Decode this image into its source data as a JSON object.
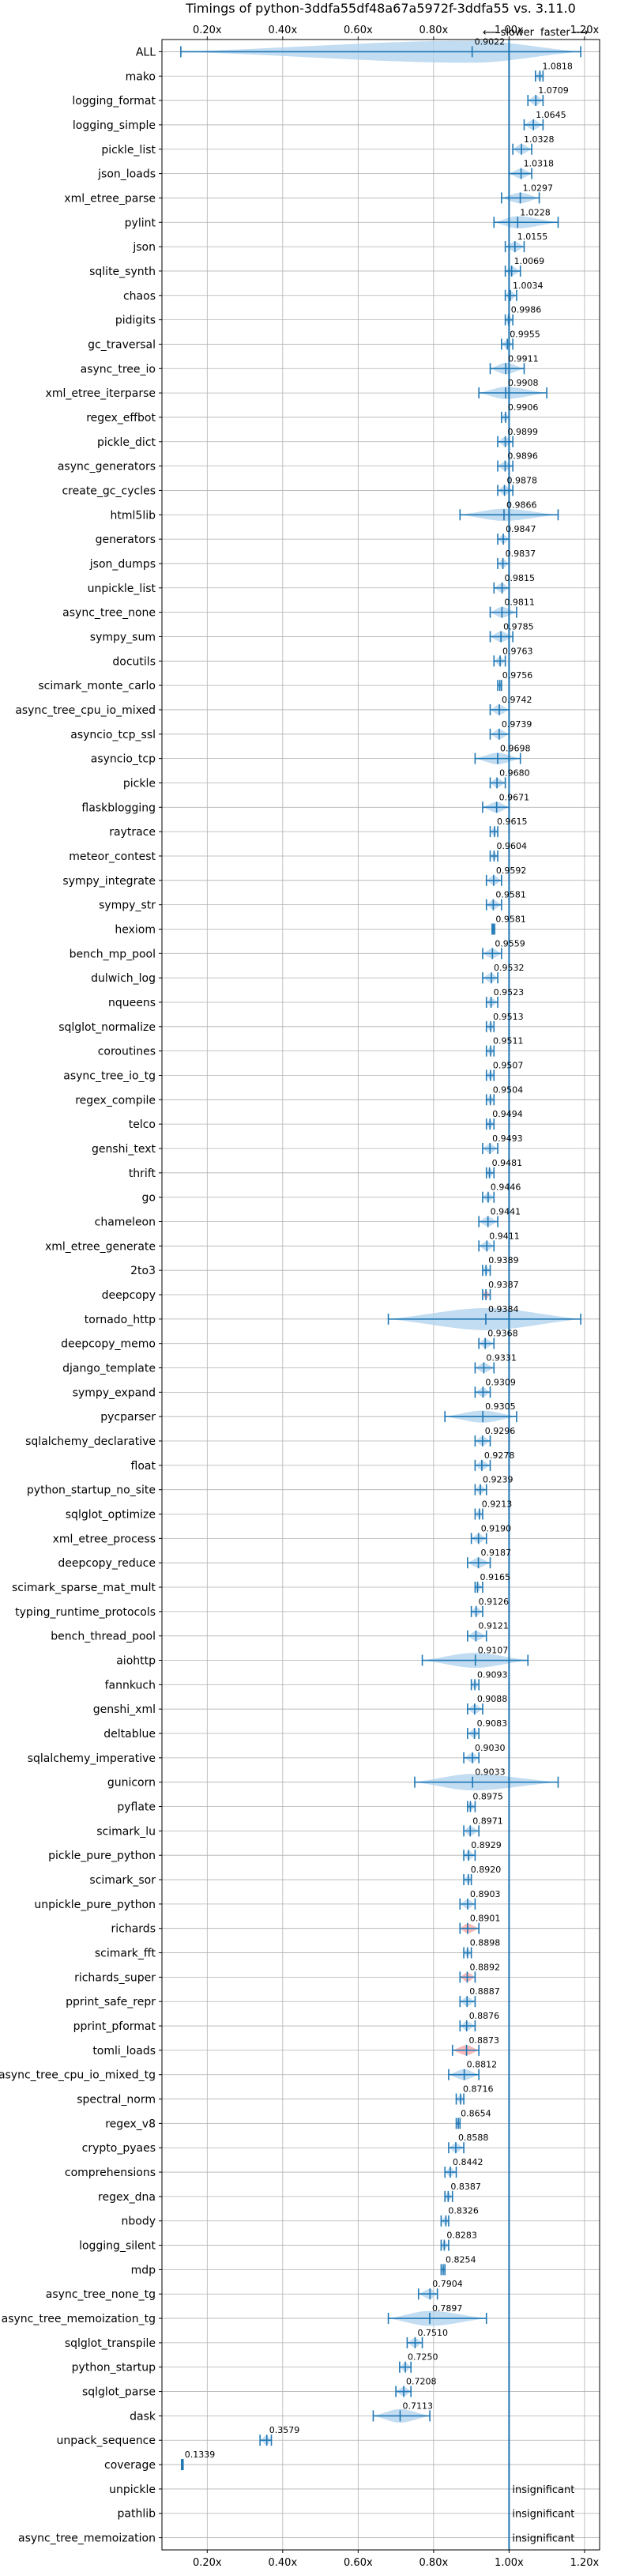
{
  "chart_data": {
    "type": "violin",
    "title": "Timings of python-3ddfa55df48a67a5972f-3ddfa55 vs. 3.11.0",
    "xlim": [
      0.08,
      1.24
    ],
    "reference_line": 1.0,
    "x_ticks": [
      0.2,
      0.4,
      0.6,
      0.8,
      1.0,
      1.2
    ],
    "x_tick_labels": [
      "0.20x",
      "0.40x",
      "0.60x",
      "0.80x",
      "1.00x",
      "1.20x"
    ],
    "legend_slower": "⟵ slower",
    "legend_faster": "faster ⟶",
    "colors": {
      "neutral": "#1f77b4",
      "violin": "#aed0ec",
      "slower": "#f4a3a3",
      "grid": "#b0b0b0"
    },
    "benchmarks": [
      {
        "name": "ALL",
        "value": 0.9022,
        "label": "0.9022",
        "min": 0.13,
        "max": 1.19,
        "spread": 0.1
      },
      {
        "name": "mako",
        "value": 1.0818,
        "label": "1.0818",
        "min": 1.07,
        "max": 1.09,
        "spread": 0.01
      },
      {
        "name": "logging_format",
        "value": 1.0709,
        "label": "1.0709",
        "min": 1.05,
        "max": 1.09,
        "spread": 0.015
      },
      {
        "name": "logging_simple",
        "value": 1.0645,
        "label": "1.0645",
        "min": 1.04,
        "max": 1.09,
        "spread": 0.015
      },
      {
        "name": "pickle_list",
        "value": 1.0328,
        "label": "1.0328",
        "min": 1.01,
        "max": 1.06,
        "spread": 0.015
      },
      {
        "name": "json_loads",
        "value": 1.0318,
        "label": "1.0318",
        "min": 1.0,
        "max": 1.06,
        "spread": 0.015
      },
      {
        "name": "xml_etree_parse",
        "value": 1.0297,
        "label": "1.0297",
        "min": 0.98,
        "max": 1.08,
        "spread": 0.02
      },
      {
        "name": "pylint",
        "value": 1.0228,
        "label": "1.0228",
        "min": 0.96,
        "max": 1.13,
        "spread": 0.03
      },
      {
        "name": "json",
        "value": 1.0155,
        "label": "1.0155",
        "min": 0.99,
        "max": 1.04,
        "spread": 0.015
      },
      {
        "name": "sqlite_synth",
        "value": 1.0069,
        "label": "1.0069",
        "min": 0.99,
        "max": 1.03,
        "spread": 0.01
      },
      {
        "name": "chaos",
        "value": 1.0034,
        "label": "1.0034",
        "min": 0.99,
        "max": 1.02,
        "spread": 0.01
      },
      {
        "name": "pidigits",
        "value": 0.9986,
        "label": "0.9986",
        "min": 0.99,
        "max": 1.01,
        "spread": 0.008
      },
      {
        "name": "gc_traversal",
        "value": 0.9955,
        "label": "0.9955",
        "min": 0.98,
        "max": 1.01,
        "spread": 0.008
      },
      {
        "name": "async_tree_io",
        "value": 0.9911,
        "label": "0.9911",
        "min": 0.95,
        "max": 1.04,
        "spread": 0.025
      },
      {
        "name": "xml_etree_iterparse",
        "value": 0.9908,
        "label": "0.9908",
        "min": 0.92,
        "max": 1.1,
        "spread": 0.03
      },
      {
        "name": "regex_effbot",
        "value": 0.9906,
        "label": "0.9906",
        "min": 0.98,
        "max": 1.0,
        "spread": 0.006
      },
      {
        "name": "pickle_dict",
        "value": 0.9899,
        "label": "0.9899",
        "min": 0.97,
        "max": 1.01,
        "spread": 0.01
      },
      {
        "name": "async_generators",
        "value": 0.9896,
        "label": "0.9896",
        "min": 0.97,
        "max": 1.01,
        "spread": 0.01
      },
      {
        "name": "create_gc_cycles",
        "value": 0.9878,
        "label": "0.9878",
        "min": 0.97,
        "max": 1.01,
        "spread": 0.01
      },
      {
        "name": "html5lib",
        "value": 0.9866,
        "label": "0.9866",
        "min": 0.87,
        "max": 1.13,
        "spread": 0.03
      },
      {
        "name": "generators",
        "value": 0.9847,
        "label": "0.9847",
        "min": 0.97,
        "max": 1.0,
        "spread": 0.008
      },
      {
        "name": "json_dumps",
        "value": 0.9837,
        "label": "0.9837",
        "min": 0.97,
        "max": 1.0,
        "spread": 0.008
      },
      {
        "name": "unpickle_list",
        "value": 0.9815,
        "label": "0.9815",
        "min": 0.96,
        "max": 1.0,
        "spread": 0.01
      },
      {
        "name": "async_tree_none",
        "value": 0.9811,
        "label": "0.9811",
        "min": 0.95,
        "max": 1.02,
        "spread": 0.02
      },
      {
        "name": "sympy_sum",
        "value": 0.9785,
        "label": "0.9785",
        "min": 0.95,
        "max": 1.01,
        "spread": 0.02
      },
      {
        "name": "docutils",
        "value": 0.9763,
        "label": "0.9763",
        "min": 0.96,
        "max": 0.99,
        "spread": 0.008
      },
      {
        "name": "scimark_monte_carlo",
        "value": 0.9756,
        "label": "0.9756",
        "min": 0.97,
        "max": 0.98,
        "spread": 0.005
      },
      {
        "name": "async_tree_cpu_io_mixed",
        "value": 0.9742,
        "label": "0.9742",
        "min": 0.95,
        "max": 1.0,
        "spread": 0.015
      },
      {
        "name": "asyncio_tcp_ssl",
        "value": 0.9739,
        "label": "0.9739",
        "min": 0.95,
        "max": 1.0,
        "spread": 0.015
      },
      {
        "name": "asyncio_tcp",
        "value": 0.9698,
        "label": "0.9698",
        "min": 0.91,
        "max": 1.03,
        "spread": 0.025
      },
      {
        "name": "pickle",
        "value": 0.968,
        "label": "0.9680",
        "min": 0.95,
        "max": 0.99,
        "spread": 0.012
      },
      {
        "name": "flaskblogging",
        "value": 0.9671,
        "label": "0.9671",
        "min": 0.93,
        "max": 1.0,
        "spread": 0.02
      },
      {
        "name": "raytrace",
        "value": 0.9615,
        "label": "0.9615",
        "min": 0.95,
        "max": 0.97,
        "spread": 0.006
      },
      {
        "name": "meteor_contest",
        "value": 0.9604,
        "label": "0.9604",
        "min": 0.95,
        "max": 0.97,
        "spread": 0.004
      },
      {
        "name": "sympy_integrate",
        "value": 0.9592,
        "label": "0.9592",
        "min": 0.94,
        "max": 0.98,
        "spread": 0.012
      },
      {
        "name": "sympy_str",
        "value": 0.9581,
        "label": "0.9581",
        "min": 0.94,
        "max": 0.98,
        "spread": 0.012
      },
      {
        "name": "hexiom",
        "value": 0.9581,
        "label": "0.9581",
        "min": 0.955,
        "max": 0.962,
        "spread": 0.003
      },
      {
        "name": "bench_mp_pool",
        "value": 0.9559,
        "label": "0.9559",
        "min": 0.93,
        "max": 0.98,
        "spread": 0.015
      },
      {
        "name": "dulwich_log",
        "value": 0.9532,
        "label": "0.9532",
        "min": 0.93,
        "max": 0.97,
        "spread": 0.012
      },
      {
        "name": "nqueens",
        "value": 0.9523,
        "label": "0.9523",
        "min": 0.94,
        "max": 0.97,
        "spread": 0.008
      },
      {
        "name": "sqlglot_normalize",
        "value": 0.9513,
        "label": "0.9513",
        "min": 0.94,
        "max": 0.96,
        "spread": 0.006
      },
      {
        "name": "coroutines",
        "value": 0.9511,
        "label": "0.9511",
        "min": 0.94,
        "max": 0.96,
        "spread": 0.006
      },
      {
        "name": "async_tree_io_tg",
        "value": 0.9507,
        "label": "0.9507",
        "min": 0.94,
        "max": 0.96,
        "spread": 0.006
      },
      {
        "name": "regex_compile",
        "value": 0.9504,
        "label": "0.9504",
        "min": 0.94,
        "max": 0.96,
        "spread": 0.006
      },
      {
        "name": "telco",
        "value": 0.9494,
        "label": "0.9494",
        "min": 0.94,
        "max": 0.96,
        "spread": 0.006
      },
      {
        "name": "genshi_text",
        "value": 0.9493,
        "label": "0.9493",
        "min": 0.93,
        "max": 0.97,
        "spread": 0.01
      },
      {
        "name": "thrift",
        "value": 0.9481,
        "label": "0.9481",
        "min": 0.94,
        "max": 0.96,
        "spread": 0.006
      },
      {
        "name": "go",
        "value": 0.9446,
        "label": "0.9446",
        "min": 0.93,
        "max": 0.96,
        "spread": 0.008
      },
      {
        "name": "chameleon",
        "value": 0.9441,
        "label": "0.9441",
        "min": 0.92,
        "max": 0.97,
        "spread": 0.012
      },
      {
        "name": "xml_etree_generate",
        "value": 0.9411,
        "label": "0.9411",
        "min": 0.92,
        "max": 0.96,
        "spread": 0.01
      },
      {
        "name": "2to3",
        "value": 0.9389,
        "label": "0.9389",
        "min": 0.93,
        "max": 0.95,
        "spread": 0.006
      },
      {
        "name": "deepcopy",
        "value": 0.9387,
        "label": "0.9387",
        "min": 0.93,
        "max": 0.95,
        "spread": 0.006
      },
      {
        "name": "tornado_http",
        "value": 0.9384,
        "label": "0.9384",
        "min": 0.68,
        "max": 1.19,
        "spread": 0.1
      },
      {
        "name": "deepcopy_memo",
        "value": 0.9368,
        "label": "0.9368",
        "min": 0.92,
        "max": 0.96,
        "spread": 0.01
      },
      {
        "name": "django_template",
        "value": 0.9331,
        "label": "0.9331",
        "min": 0.91,
        "max": 0.96,
        "spread": 0.012
      },
      {
        "name": "sympy_expand",
        "value": 0.9309,
        "label": "0.9309",
        "min": 0.91,
        "max": 0.95,
        "spread": 0.01
      },
      {
        "name": "pycparser",
        "value": 0.9305,
        "label": "0.9305",
        "min": 0.83,
        "max": 1.02,
        "spread": 0.03
      },
      {
        "name": "sqlalchemy_declarative",
        "value": 0.9296,
        "label": "0.9296",
        "min": 0.91,
        "max": 0.95,
        "spread": 0.01
      },
      {
        "name": "float",
        "value": 0.9278,
        "label": "0.9278",
        "min": 0.91,
        "max": 0.95,
        "spread": 0.01
      },
      {
        "name": "python_startup_no_site",
        "value": 0.9239,
        "label": "0.9239",
        "min": 0.91,
        "max": 0.94,
        "spread": 0.008
      },
      {
        "name": "sqlglot_optimize",
        "value": 0.9213,
        "label": "0.9213",
        "min": 0.91,
        "max": 0.93,
        "spread": 0.006
      },
      {
        "name": "xml_etree_process",
        "value": 0.919,
        "label": "0.9190",
        "min": 0.9,
        "max": 0.94,
        "spread": 0.01
      },
      {
        "name": "deepcopy_reduce",
        "value": 0.9187,
        "label": "0.9187",
        "min": 0.89,
        "max": 0.95,
        "spread": 0.015
      },
      {
        "name": "scimark_sparse_mat_mult",
        "value": 0.9165,
        "label": "0.9165",
        "min": 0.91,
        "max": 0.93,
        "spread": 0.005
      },
      {
        "name": "typing_runtime_protocols",
        "value": 0.9126,
        "label": "0.9126",
        "min": 0.9,
        "max": 0.93,
        "spread": 0.008
      },
      {
        "name": "bench_thread_pool",
        "value": 0.9121,
        "label": "0.9121",
        "min": 0.89,
        "max": 0.94,
        "spread": 0.012
      },
      {
        "name": "aiohttp",
        "value": 0.9107,
        "label": "0.9107",
        "min": 0.77,
        "max": 1.05,
        "spread": 0.05
      },
      {
        "name": "fannkuch",
        "value": 0.9093,
        "label": "0.9093",
        "min": 0.9,
        "max": 0.92,
        "spread": 0.005
      },
      {
        "name": "genshi_xml",
        "value": 0.9088,
        "label": "0.9088",
        "min": 0.89,
        "max": 0.93,
        "spread": 0.01
      },
      {
        "name": "deltablue",
        "value": 0.9083,
        "label": "0.9083",
        "min": 0.89,
        "max": 0.92,
        "spread": 0.008
      },
      {
        "name": "sqlalchemy_imperative",
        "value": 0.903,
        "label": "0.9030",
        "min": 0.88,
        "max": 0.92,
        "spread": 0.01
      },
      {
        "name": "gunicorn",
        "value": 0.9033,
        "label": "0.9033",
        "min": 0.75,
        "max": 1.13,
        "spread": 0.06
      },
      {
        "name": "pyflate",
        "value": 0.8975,
        "label": "0.8975",
        "min": 0.89,
        "max": 0.91,
        "spread": 0.006
      },
      {
        "name": "scimark_lu",
        "value": 0.8971,
        "label": "0.8971",
        "min": 0.88,
        "max": 0.92,
        "spread": 0.01
      },
      {
        "name": "pickle_pure_python",
        "value": 0.8929,
        "label": "0.8929",
        "min": 0.88,
        "max": 0.91,
        "spread": 0.008
      },
      {
        "name": "scimark_sor",
        "value": 0.892,
        "label": "0.8920",
        "min": 0.88,
        "max": 0.9,
        "spread": 0.005
      },
      {
        "name": "unpickle_pure_python",
        "value": 0.8903,
        "label": "0.8903",
        "min": 0.87,
        "max": 0.91,
        "spread": 0.01
      },
      {
        "name": "richards",
        "value": 0.8901,
        "label": "0.8901",
        "min": 0.87,
        "max": 0.92,
        "spread": 0.012
      },
      {
        "name": "scimark_fft",
        "value": 0.8898,
        "label": "0.8898",
        "min": 0.88,
        "max": 0.9,
        "spread": 0.005
      },
      {
        "name": "richards_super",
        "value": 0.8892,
        "label": "0.8892",
        "min": 0.87,
        "max": 0.91,
        "spread": 0.01
      },
      {
        "name": "pprint_safe_repr",
        "value": 0.8887,
        "label": "0.8887",
        "min": 0.87,
        "max": 0.91,
        "spread": 0.01
      },
      {
        "name": "pprint_pformat",
        "value": 0.8876,
        "label": "0.8876",
        "min": 0.87,
        "max": 0.91,
        "spread": 0.01
      },
      {
        "name": "tomli_loads",
        "value": 0.8873,
        "label": "0.8873",
        "min": 0.85,
        "max": 0.92,
        "spread": 0.015
      },
      {
        "name": "async_tree_cpu_io_mixed_tg",
        "value": 0.8812,
        "label": "0.8812",
        "min": 0.84,
        "max": 0.92,
        "spread": 0.02
      },
      {
        "name": "spectral_norm",
        "value": 0.8716,
        "label": "0.8716",
        "min": 0.86,
        "max": 0.88,
        "spread": 0.005
      },
      {
        "name": "regex_v8",
        "value": 0.8654,
        "label": "0.8654",
        "min": 0.86,
        "max": 0.87,
        "spread": 0.004
      },
      {
        "name": "crypto_pyaes",
        "value": 0.8588,
        "label": "0.8588",
        "min": 0.84,
        "max": 0.88,
        "spread": 0.01
      },
      {
        "name": "comprehensions",
        "value": 0.8442,
        "label": "0.8442",
        "min": 0.83,
        "max": 0.86,
        "spread": 0.008
      },
      {
        "name": "regex_dna",
        "value": 0.8387,
        "label": "0.8387",
        "min": 0.83,
        "max": 0.85,
        "spread": 0.005
      },
      {
        "name": "nbody",
        "value": 0.8326,
        "label": "0.8326",
        "min": 0.82,
        "max": 0.84,
        "spread": 0.005
      },
      {
        "name": "logging_silent",
        "value": 0.8283,
        "label": "0.8283",
        "min": 0.82,
        "max": 0.84,
        "spread": 0.005
      },
      {
        "name": "mdp",
        "value": 0.8254,
        "label": "0.8254",
        "min": 0.82,
        "max": 0.83,
        "spread": 0.004
      },
      {
        "name": "async_tree_none_tg",
        "value": 0.7904,
        "label": "0.7904",
        "min": 0.76,
        "max": 0.81,
        "spread": 0.015
      },
      {
        "name": "async_tree_memoization_tg",
        "value": 0.7897,
        "label": "0.7897",
        "min": 0.68,
        "max": 0.94,
        "spread": 0.05
      },
      {
        "name": "sqlglot_transpile",
        "value": 0.751,
        "label": "0.7510",
        "min": 0.73,
        "max": 0.77,
        "spread": 0.01
      },
      {
        "name": "python_startup",
        "value": 0.725,
        "label": "0.7250",
        "min": 0.71,
        "max": 0.74,
        "spread": 0.008
      },
      {
        "name": "sqlglot_parse",
        "value": 0.7208,
        "label": "0.7208",
        "min": 0.7,
        "max": 0.74,
        "spread": 0.01
      },
      {
        "name": "dask",
        "value": 0.7113,
        "label": "0.7113",
        "min": 0.64,
        "max": 0.79,
        "spread": 0.04
      },
      {
        "name": "unpack_sequence",
        "value": 0.3579,
        "label": "0.3579",
        "min": 0.34,
        "max": 0.37,
        "spread": 0.01
      },
      {
        "name": "coverage",
        "value": 0.1339,
        "label": "0.1339",
        "min": 0.132,
        "max": 0.136,
        "spread": 0.002
      },
      {
        "name": "unpickle",
        "value": null,
        "label": "insignificant"
      },
      {
        "name": "pathlib",
        "value": null,
        "label": "insignificant"
      },
      {
        "name": "async_tree_memoization",
        "value": null,
        "label": "insignificant"
      }
    ],
    "slower_highlight": [
      "deepcopy",
      "richards",
      "richards_super",
      "tomli_loads"
    ]
  }
}
